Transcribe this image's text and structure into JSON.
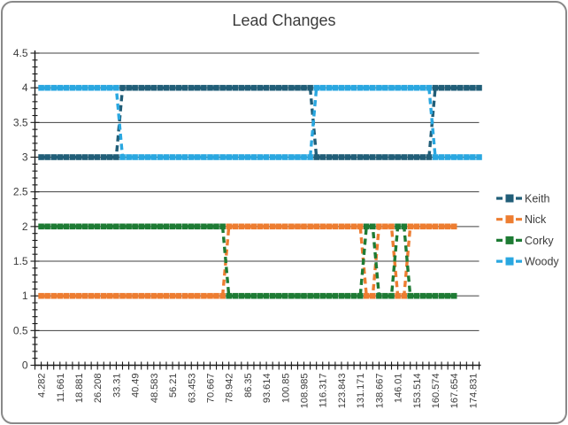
{
  "window": {
    "background": "#ffffff",
    "border_color": "#898989"
  },
  "chart_data": {
    "type": "line",
    "title": "Lead Changes",
    "grid": "horizontal",
    "legend_position": "right",
    "x_axis": {
      "tick_labels": [
        "4.282",
        "11.661",
        "18.881",
        "26.208",
        "33.31",
        "40.49",
        "48.583",
        "56.21",
        "63.453",
        "70.667",
        "78.942",
        "86.35",
        "93.614",
        "100.85",
        "108.985",
        "116.317",
        "123.843",
        "131.171",
        "138.667",
        "146.01",
        "153.514",
        "160.574",
        "167.654",
        "174.831"
      ],
      "label_interval": 3,
      "total_points": 71
    },
    "y_axis": {
      "min": 0,
      "max": 4.5,
      "step": 0.5,
      "minor_step": 0.1,
      "tick_labels": [
        "0",
        "0.5",
        "1",
        "1.5",
        "2",
        "2.5",
        "3",
        "3.5",
        "4",
        "4.5"
      ]
    },
    "series": [
      {
        "name": "Keith",
        "color": "#215E78",
        "points": [
          3,
          3,
          3,
          3,
          3,
          3,
          3,
          3,
          3,
          3,
          3,
          3,
          3,
          4,
          4,
          4,
          4,
          4,
          4,
          4,
          4,
          4,
          4,
          4,
          4,
          4,
          4,
          4,
          4,
          4,
          4,
          4,
          4,
          4,
          4,
          4,
          4,
          4,
          4,
          4,
          4,
          4,
          4,
          4,
          3,
          3,
          3,
          3,
          3,
          3,
          3,
          3,
          3,
          3,
          3,
          3,
          3,
          3,
          3,
          3,
          3,
          3,
          3,
          4,
          4,
          4,
          4,
          4,
          4,
          4,
          4
        ]
      },
      {
        "name": "Nick",
        "color": "#ED7D31",
        "points": [
          1,
          1,
          1,
          1,
          1,
          1,
          1,
          1,
          1,
          1,
          1,
          1,
          1,
          1,
          1,
          1,
          1,
          1,
          1,
          1,
          1,
          1,
          1,
          1,
          1,
          1,
          1,
          1,
          1,
          1,
          2,
          2,
          2,
          2,
          2,
          2,
          2,
          2,
          2,
          2,
          2,
          2,
          2,
          2,
          2,
          2,
          2,
          2,
          2,
          2,
          2,
          2,
          1,
          1,
          2,
          2,
          2,
          1,
          1,
          2,
          2,
          2,
          2,
          2,
          2,
          2,
          2,
          null,
          null,
          null,
          null
        ]
      },
      {
        "name": "Corky",
        "color": "#1E7B34",
        "points": [
          2,
          2,
          2,
          2,
          2,
          2,
          2,
          2,
          2,
          2,
          2,
          2,
          2,
          2,
          2,
          2,
          2,
          2,
          2,
          2,
          2,
          2,
          2,
          2,
          2,
          2,
          2,
          2,
          2,
          2,
          1,
          1,
          1,
          1,
          1,
          1,
          1,
          1,
          1,
          1,
          1,
          1,
          1,
          1,
          1,
          1,
          1,
          1,
          1,
          1,
          1,
          1,
          2,
          2,
          1,
          1,
          1,
          2,
          2,
          1,
          1,
          1,
          1,
          1,
          1,
          1,
          1,
          null,
          null,
          null,
          null
        ]
      },
      {
        "name": "Woody",
        "color": "#2AA7E0",
        "points": [
          4,
          4,
          4,
          4,
          4,
          4,
          4,
          4,
          4,
          4,
          4,
          4,
          4,
          3,
          3,
          3,
          3,
          3,
          3,
          3,
          3,
          3,
          3,
          3,
          3,
          3,
          3,
          3,
          3,
          3,
          3,
          3,
          3,
          3,
          3,
          3,
          3,
          3,
          3,
          3,
          3,
          3,
          3,
          3,
          4,
          4,
          4,
          4,
          4,
          4,
          4,
          4,
          4,
          4,
          4,
          4,
          4,
          4,
          4,
          4,
          4,
          4,
          4,
          3,
          3,
          3,
          3,
          3,
          3,
          3,
          3
        ]
      }
    ],
    "legend": [
      "Keith",
      "Nick",
      "Corky",
      "Woody"
    ]
  }
}
